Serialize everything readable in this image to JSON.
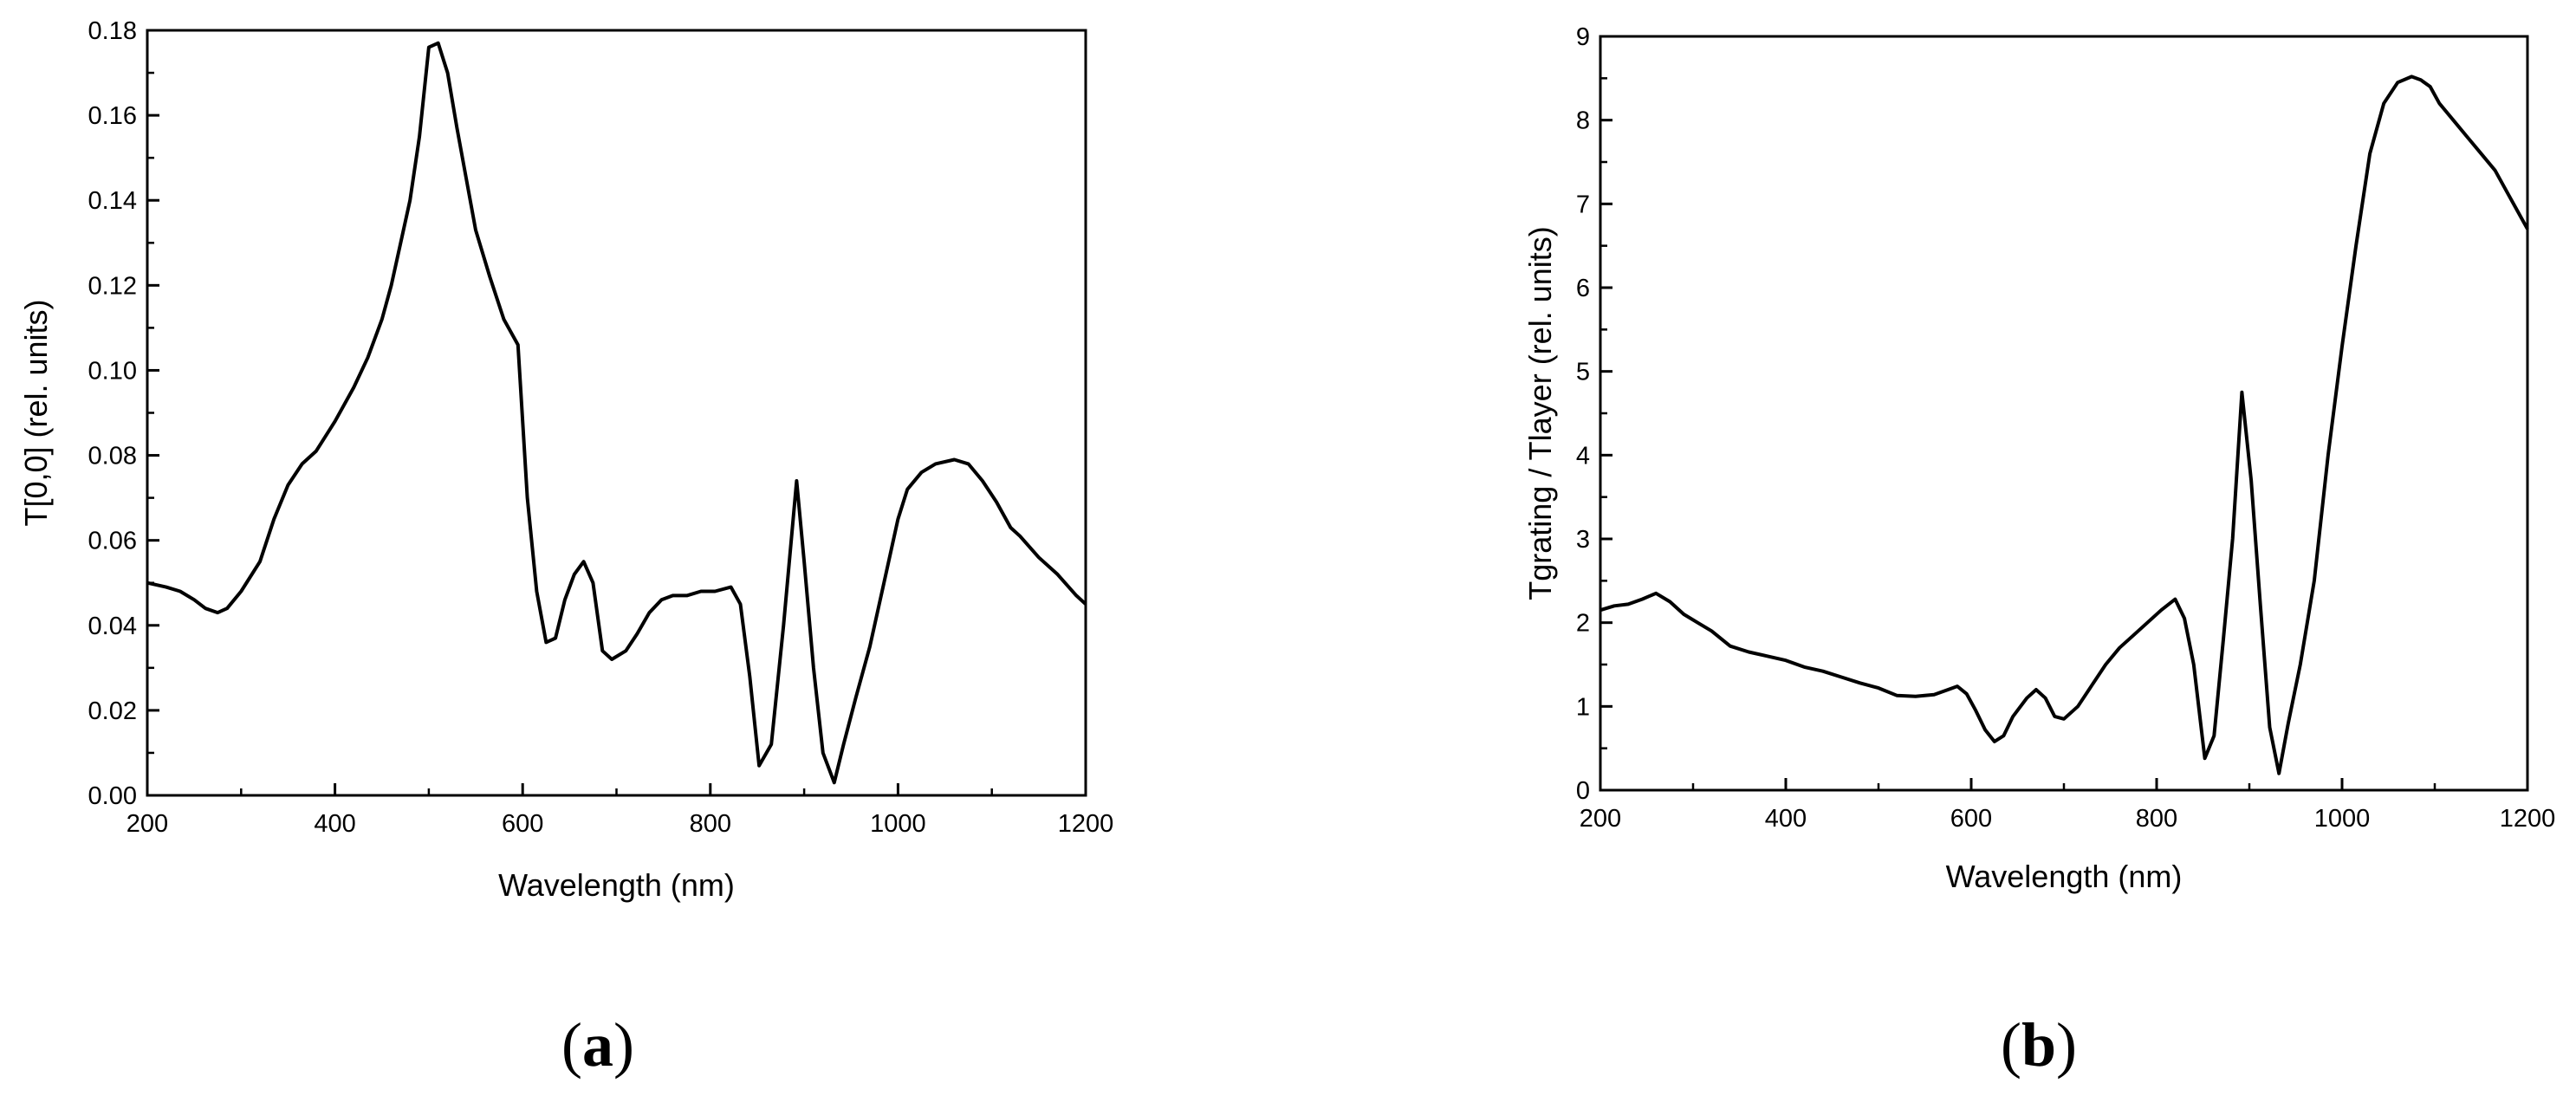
{
  "chart_data": [
    {
      "type": "line",
      "panel": "(a)",
      "panel_open": "(",
      "panel_letter": "a",
      "panel_close": ")",
      "xlabel": "Wavelength (nm)",
      "ylabel": "T[0,0] (rel. units)",
      "xlim": [
        200,
        1200
      ],
      "ylim": [
        0,
        0.18
      ],
      "xticks": [
        200,
        400,
        600,
        800,
        1000,
        1200
      ],
      "yticks": [
        0.0,
        0.02,
        0.04,
        0.06,
        0.08,
        0.1,
        0.12,
        0.14,
        0.16,
        0.18
      ],
      "ytick_labels": [
        "0.00",
        "0.02",
        "0.04",
        "0.06",
        "0.08",
        "0.10",
        "0.12",
        "0.14",
        "0.16",
        "0.18"
      ],
      "grid": false,
      "series": [
        {
          "color": "#000000",
          "x": [
            200,
            220,
            235,
            250,
            262,
            275,
            285,
            300,
            320,
            335,
            350,
            365,
            380,
            400,
            420,
            435,
            450,
            460,
            470,
            480,
            490,
            500,
            510,
            520,
            530,
            540,
            550,
            565,
            580,
            595,
            605,
            615,
            625,
            635,
            645,
            655,
            665,
            675,
            685,
            695,
            710,
            722,
            735,
            748,
            760,
            775,
            790,
            805,
            822,
            832,
            842,
            852,
            865,
            878,
            892,
            900,
            910,
            920,
            932,
            942,
            955,
            970,
            985,
            1000,
            1010,
            1025,
            1040,
            1060,
            1075,
            1090,
            1105,
            1120,
            1130,
            1150,
            1170,
            1190,
            1200
          ],
          "y": [
            0.05,
            0.049,
            0.048,
            0.046,
            0.044,
            0.043,
            0.044,
            0.048,
            0.055,
            0.065,
            0.073,
            0.078,
            0.081,
            0.088,
            0.096,
            0.103,
            0.112,
            0.12,
            0.13,
            0.14,
            0.155,
            0.176,
            0.177,
            0.17,
            0.157,
            0.145,
            0.133,
            0.122,
            0.112,
            0.106,
            0.07,
            0.048,
            0.036,
            0.037,
            0.046,
            0.052,
            0.055,
            0.05,
            0.034,
            0.032,
            0.034,
            0.038,
            0.043,
            0.046,
            0.047,
            0.047,
            0.048,
            0.048,
            0.049,
            0.045,
            0.028,
            0.007,
            0.012,
            0.04,
            0.074,
            0.055,
            0.03,
            0.01,
            0.003,
            0.012,
            0.023,
            0.035,
            0.05,
            0.065,
            0.072,
            0.076,
            0.078,
            0.079,
            0.078,
            0.074,
            0.069,
            0.063,
            0.061,
            0.056,
            0.052,
            0.047,
            0.045
          ]
        }
      ]
    },
    {
      "type": "line",
      "panel": "(b)",
      "panel_open": "(",
      "panel_letter": "b",
      "panel_close": ")",
      "xlabel": "Wavelength (nm)",
      "ylabel": "Tgrating / Tlayer (rel. units)",
      "xlim": [
        200,
        1200
      ],
      "ylim": [
        0,
        9
      ],
      "xticks": [
        200,
        400,
        600,
        800,
        1000,
        1200
      ],
      "yticks": [
        0,
        1,
        2,
        3,
        4,
        5,
        6,
        7,
        8,
        9
      ],
      "ytick_labels": [
        "0",
        "1",
        "2",
        "3",
        "4",
        "5",
        "6",
        "7",
        "8",
        "9"
      ],
      "grid": false,
      "series": [
        {
          "color": "#000000",
          "x": [
            200,
            215,
            230,
            245,
            260,
            275,
            290,
            305,
            320,
            340,
            360,
            380,
            400,
            420,
            440,
            460,
            480,
            500,
            520,
            540,
            560,
            575,
            585,
            595,
            605,
            615,
            625,
            635,
            645,
            660,
            670,
            680,
            690,
            700,
            715,
            730,
            745,
            760,
            775,
            790,
            805,
            820,
            830,
            840,
            852,
            862,
            872,
            882,
            892,
            902,
            912,
            922,
            932,
            942,
            955,
            970,
            985,
            1000,
            1015,
            1030,
            1045,
            1060,
            1075,
            1085,
            1095,
            1105,
            1120,
            1135,
            1150,
            1165,
            1180,
            1190,
            1200
          ],
          "y": [
            2.15,
            2.2,
            2.22,
            2.28,
            2.35,
            2.25,
            2.1,
            2.0,
            1.9,
            1.72,
            1.65,
            1.6,
            1.55,
            1.47,
            1.42,
            1.35,
            1.28,
            1.22,
            1.13,
            1.12,
            1.14,
            1.2,
            1.24,
            1.15,
            0.95,
            0.72,
            0.58,
            0.65,
            0.88,
            1.1,
            1.2,
            1.1,
            0.88,
            0.85,
            1.0,
            1.25,
            1.5,
            1.7,
            1.85,
            2.0,
            2.15,
            2.28,
            2.05,
            1.5,
            0.38,
            0.65,
            1.8,
            3.0,
            4.75,
            3.7,
            2.2,
            0.75,
            0.2,
            0.8,
            1.5,
            2.5,
            4.0,
            5.3,
            6.5,
            7.6,
            8.2,
            8.45,
            8.52,
            8.48,
            8.4,
            8.2,
            8.0,
            7.8,
            7.6,
            7.4,
            7.1,
            6.9,
            6.7
          ]
        }
      ]
    }
  ]
}
